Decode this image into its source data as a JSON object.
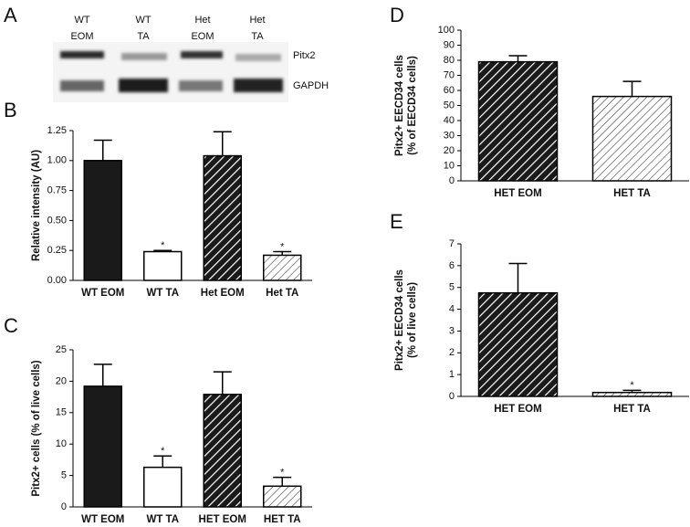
{
  "blot": {
    "panel": "A",
    "lanes": [
      [
        "WT",
        "EOM"
      ],
      [
        "WT",
        "TA"
      ],
      [
        "Het",
        "EOM"
      ],
      [
        "Het",
        "TA"
      ]
    ],
    "bands": [
      "Pitx2",
      "GAPDH"
    ]
  },
  "chart_data": [
    {
      "type": "bar",
      "panel": "B",
      "ylabel": [
        "Relative intensity (AU)"
      ],
      "categories": [
        "WT EOM",
        "WT TA",
        "Het EOM",
        "Het TA"
      ],
      "values": [
        1.0,
        0.24,
        1.04,
        0.21
      ],
      "errors": [
        0.17,
        0.01,
        0.2,
        0.03
      ],
      "markers": [
        null,
        "*",
        null,
        "*"
      ],
      "fills": [
        "solid",
        "open",
        "hatch-dark",
        "hatch-light"
      ],
      "ylim": [
        0,
        1.25
      ],
      "yticks": [
        {
          "value": 0,
          "label": "0.00"
        },
        {
          "value": 0.25,
          "label": "0.25"
        },
        {
          "value": 0.5,
          "label": "0.50"
        },
        {
          "value": 0.75,
          "label": "0.75"
        },
        {
          "value": 1,
          "label": "1.00"
        },
        {
          "value": 1.25,
          "label": "1.25"
        }
      ]
    },
    {
      "type": "bar",
      "panel": "C",
      "ylabel": [
        "Pitx2+ cells (% of live cells)"
      ],
      "categories": [
        "WT EOM",
        "WT TA",
        "HET EOM",
        "HET TA"
      ],
      "values": [
        19.2,
        6.3,
        17.9,
        3.3
      ],
      "errors": [
        3.5,
        1.8,
        3.6,
        1.4
      ],
      "markers": [
        null,
        "*",
        null,
        "*"
      ],
      "fills": [
        "solid",
        "open",
        "hatch-dark",
        "hatch-light"
      ],
      "ylim": [
        0,
        25
      ],
      "yticks": [
        0,
        5,
        10,
        15,
        20,
        25
      ]
    },
    {
      "type": "bar",
      "panel": "D",
      "ylabel": [
        "Pitx2+ EECD34 cells",
        "(% of EECD34 cells)"
      ],
      "categories": [
        "HET EOM",
        "HET TA"
      ],
      "values": [
        79,
        56
      ],
      "errors": [
        4,
        10
      ],
      "markers": [
        null,
        null
      ],
      "fills": [
        "hatch-dark",
        "hatch-light"
      ],
      "ylim": [
        0,
        100
      ],
      "yticks": [
        0,
        10,
        20,
        30,
        40,
        50,
        60,
        70,
        80,
        90,
        100
      ]
    },
    {
      "type": "bar",
      "panel": "E",
      "ylabel": [
        "Pitx2+ EECD34 cells",
        "(% of live cells)"
      ],
      "categories": [
        "HET EOM",
        "HET TA"
      ],
      "values": [
        4.75,
        0.18
      ],
      "errors": [
        1.35,
        0.1
      ],
      "markers": [
        null,
        "*"
      ],
      "fills": [
        "hatch-dark",
        "hatch-light"
      ],
      "ylim": [
        0,
        7
      ],
      "yticks": [
        0,
        1,
        2,
        3,
        4,
        5,
        6,
        7
      ]
    }
  ]
}
